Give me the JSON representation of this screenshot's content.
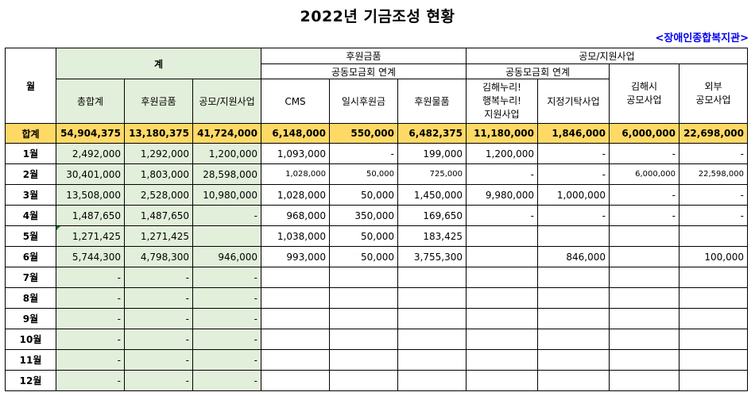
{
  "title": "2022년 기금조성 현황",
  "org": "<장애인종합복지관>",
  "headers": {
    "month": "월",
    "sum_group": "계",
    "donation_group": "후원금품",
    "public_group": "공모/지원사업",
    "community_chest_1": "공동모금회 연계",
    "community_chest_2": "공동모금회 연계",
    "total": "총합계",
    "donation": "후원금품",
    "public": "공모/지원사업",
    "cms": "CMS",
    "temp": "일시후원금",
    "goods": "후원물품",
    "gimhae_l1": "김해누리!",
    "gimhae_l2": "행복누리!",
    "gimhae_l3": "지원사업",
    "designated": "지정기탁사업",
    "city_l1": "김해시",
    "city_l2": "공모사업",
    "ext_l1": "외부",
    "ext_l2": "공모사업"
  },
  "total_row": {
    "label": "합계",
    "values": [
      "54,904,375",
      "13,180,375",
      "41,724,000",
      "6,148,000",
      "550,000",
      "6,482,375",
      "11,180,000",
      "1,846,000",
      "6,000,000",
      "22,698,000"
    ]
  },
  "rows": [
    {
      "label": "1월",
      "values": [
        "2,492,000",
        "1,292,000",
        "1,200,000",
        "1,093,000",
        "-",
        "199,000",
        "1,200,000",
        "-",
        "-",
        "-"
      ]
    },
    {
      "label": "2월",
      "values": [
        "30,401,000",
        "1,803,000",
        "28,598,000",
        "1,028,000",
        "50,000",
        "725,000",
        "-",
        "-",
        "6,000,000",
        "22,598,000"
      ]
    },
    {
      "label": "3월",
      "values": [
        "13,508,000",
        "2,528,000",
        "10,980,000",
        "1,028,000",
        "50,000",
        "1,450,000",
        "9,980,000",
        "1,000,000",
        "-",
        "-"
      ]
    },
    {
      "label": "4월",
      "values": [
        "1,487,650",
        "1,487,650",
        "-",
        "968,000",
        "350,000",
        "169,650",
        "-",
        "-",
        "-",
        "-"
      ]
    },
    {
      "label": "5월",
      "values": [
        "1,271,425",
        "1,271,425",
        "",
        "1,038,000",
        "50,000",
        "183,425",
        "",
        "",
        "",
        ""
      ]
    },
    {
      "label": "6월",
      "values": [
        "5,744,300",
        "4,798,300",
        "946,000",
        "993,000",
        "50,000",
        "3,755,300",
        "",
        "846,000",
        "",
        "100,000"
      ]
    },
    {
      "label": "7월",
      "values": [
        "-",
        "-",
        "-",
        "",
        "",
        "",
        "",
        "",
        "",
        ""
      ]
    },
    {
      "label": "8월",
      "values": [
        "-",
        "-",
        "-",
        "",
        "",
        "",
        "",
        "",
        "",
        ""
      ]
    },
    {
      "label": "9월",
      "values": [
        "-",
        "-",
        "-",
        "",
        "",
        "",
        "",
        "",
        "",
        ""
      ]
    },
    {
      "label": "10월",
      "values": [
        "-",
        "-",
        "-",
        "",
        "",
        "",
        "",
        "",
        "",
        ""
      ]
    },
    {
      "label": "11월",
      "values": [
        "-",
        "-",
        "-",
        "",
        "",
        "",
        "",
        "",
        "",
        ""
      ]
    },
    {
      "label": "12월",
      "values": [
        "-",
        "-",
        "-",
        "",
        "",
        "",
        "",
        "",
        "",
        ""
      ]
    }
  ]
}
